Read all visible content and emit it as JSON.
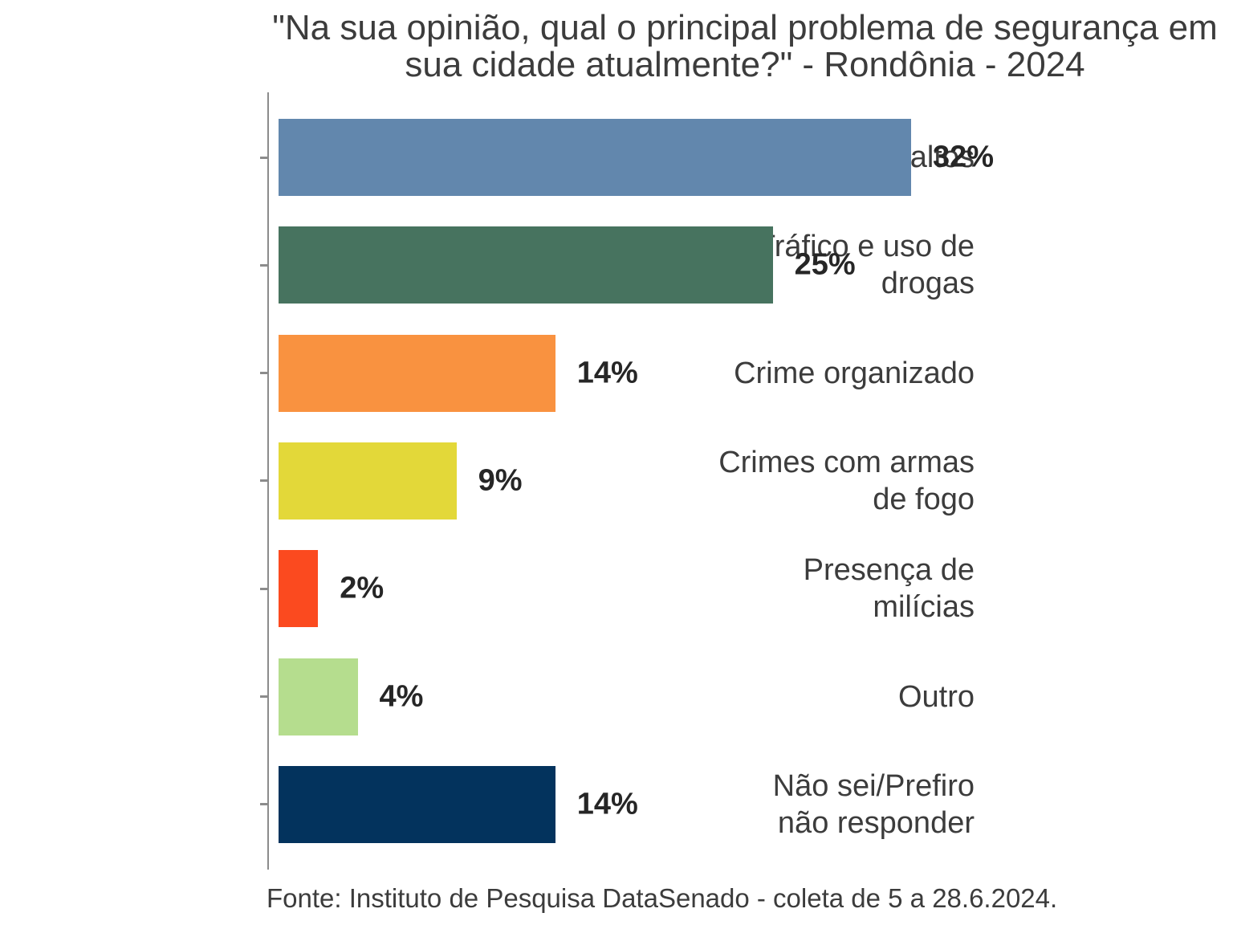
{
  "title": {
    "lines": [
      "\"Na sua opinião, qual o principal problema de segurança em",
      "sua cidade atualmente?\" - Rondônia - 2024"
    ]
  },
  "source": {
    "text": "Fonte: Instituto de Pesquisa DataSenado - coleta de 5 a 28.6.2024."
  },
  "colors": {
    "axis": "#8c8c8c",
    "title_text": "#3c3c3c",
    "label_text": "#3c3c3c",
    "value_text": "#262626",
    "background": "#ffffff"
  },
  "chart_data": {
    "type": "bar",
    "orientation": "horizontal",
    "title": "\"Na sua opinião, qual o principal problema de segurança em sua cidade atualmente?\" - Rondônia - 2024",
    "categories": [
      "Roubos e assaltos",
      "Tráfico e uso de\ndrogas",
      "Crime organizado",
      "Crimes com armas\nde fogo",
      "Presença de\nmilícias",
      "Outro",
      "Não sei/Prefiro\nnão responder"
    ],
    "values": [
      32,
      25,
      14,
      9,
      2,
      4,
      14
    ],
    "unit": "%",
    "bar_colors": [
      "#6287ad",
      "#47735f",
      "#f99240",
      "#e3d839",
      "#fb4a1f",
      "#b5dd8e",
      "#03335d"
    ],
    "xlim": [
      0,
      48
    ],
    "grid": false,
    "legend": "none",
    "value_labels_shown": true,
    "source": "Fonte: Instituto de Pesquisa DataSenado - coleta de 5 a 28.6.2024."
  }
}
